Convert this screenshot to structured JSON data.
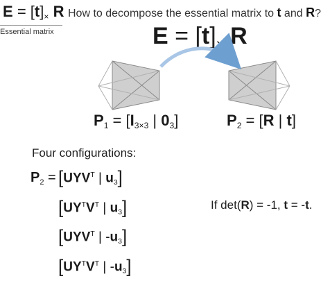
{
  "header": {
    "formula": {
      "lhs": "E",
      "eq": "=",
      "open": "[",
      "t": "t",
      "close": "]",
      "times": "×",
      "r": "R"
    },
    "question": {
      "prefix": "How to decompose the essential matrix to ",
      "t": "t",
      "and": " and ",
      "r": "R",
      "suffix": "?"
    }
  },
  "section_label": "Essential matrix",
  "big_formula": {
    "lhs": "E",
    "eq": "=",
    "open": "[",
    "t": "t",
    "close": "]",
    "times": "×",
    "r": "R"
  },
  "p1": {
    "name": "P",
    "sub": "1",
    "eq": "=",
    "open": "[",
    "I": "I",
    "I_sub": "3×3",
    "bar": "|",
    "zero": "0",
    "zero_sub": "3",
    "close": "]"
  },
  "p2": {
    "name": "P",
    "sub": "2",
    "eq": "=",
    "open": "[",
    "R": "R",
    "bar": "|",
    "t": "t",
    "close": "]"
  },
  "four_title": "Four configurations:",
  "p2_lhs": {
    "name": "P",
    "sub": "2",
    "eq": "="
  },
  "configs": [
    {
      "mat": "UYV",
      "transpose_y": "",
      "transpose_v": "T",
      "bar": "|",
      "sign": "",
      "u": "u",
      "u_sub": "3"
    },
    {
      "mat": "UY",
      "transpose_y": "T",
      "v": "V",
      "transpose_v": "T",
      "bar": "|",
      "sign": "",
      "u": "u",
      "u_sub": "3"
    },
    {
      "mat": "UYV",
      "transpose_y": "",
      "transpose_v": "T",
      "bar": "|",
      "sign": "-",
      "u": "u",
      "u_sub": "3"
    },
    {
      "mat": "UY",
      "transpose_y": "T",
      "v": "V",
      "transpose_v": "T",
      "bar": "|",
      "sign": "-",
      "u": "u",
      "u_sub": "3"
    }
  ],
  "condition": {
    "if": "If ",
    "det": "det(",
    "R": "R",
    "close": ") = -1,  ",
    "t": "t",
    "eq": " = -",
    "t2": "t",
    "end": "."
  },
  "colors": {
    "camera_fill": "#cfcfcf",
    "camera_stroke": "#8a8a8a",
    "arrow": "#6e9fd1",
    "text": "#1a1a1a"
  }
}
